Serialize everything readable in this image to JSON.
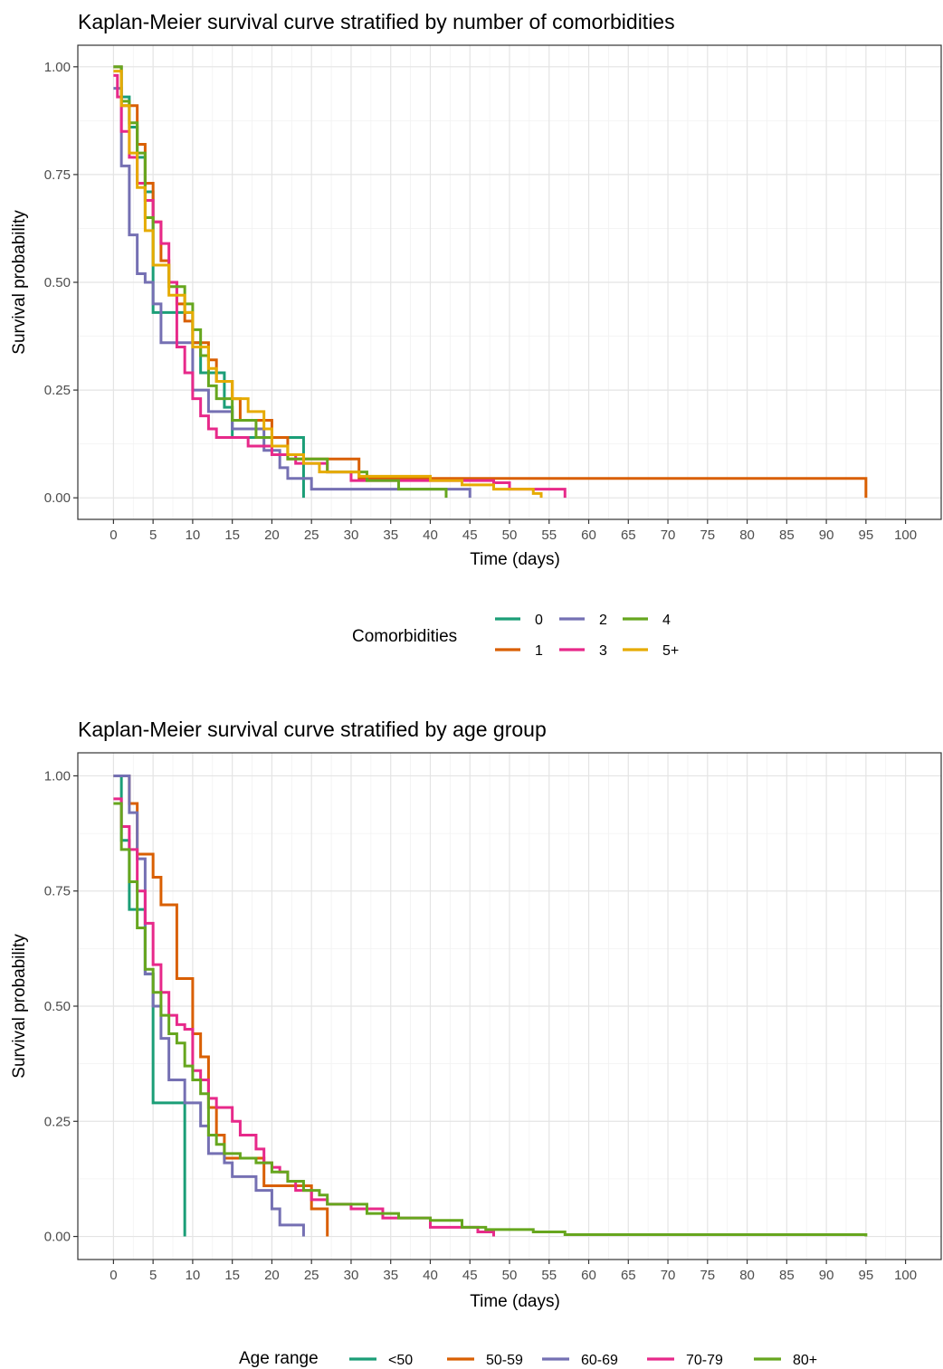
{
  "chart_data": [
    {
      "type": "line",
      "title": "Kaplan-Meier survival curve stratified by number of comorbidities",
      "xlabel": "Time (days)",
      "ylabel": "Survival probability",
      "xlim": [
        -4.5,
        104.5
      ],
      "ylim": [
        -0.05,
        1.05
      ],
      "x_ticks": [
        0,
        5,
        10,
        15,
        20,
        25,
        30,
        35,
        40,
        45,
        50,
        55,
        60,
        65,
        70,
        75,
        80,
        85,
        90,
        95,
        100
      ],
      "y_ticks": [
        0,
        0.25,
        0.5,
        0.75,
        1
      ],
      "y_tick_labels": [
        "0.00",
        "0.25",
        "0.50",
        "0.75",
        "1.00"
      ],
      "grid": true,
      "legend": {
        "title": "Comorbidities",
        "placement": "bottom",
        "order": [
          "0",
          "2",
          "4",
          "1",
          "3",
          "5+"
        ],
        "columns": 3
      },
      "series": [
        {
          "name": "0",
          "color": "#1b9e77",
          "steps": [
            [
              0,
              1.0
            ],
            [
              1,
              0.93
            ],
            [
              2,
              0.86
            ],
            [
              3,
              0.79
            ],
            [
              4,
              0.71
            ],
            [
              5,
              0.43
            ],
            [
              10,
              0.36
            ],
            [
              11,
              0.29
            ],
            [
              14,
              0.21
            ],
            [
              15,
              0.14
            ],
            [
              24,
              0.0
            ]
          ]
        },
        {
          "name": "1",
          "color": "#d95f02",
          "steps": [
            [
              0,
              1.0
            ],
            [
              1,
              0.91
            ],
            [
              3,
              0.82
            ],
            [
              4,
              0.73
            ],
            [
              5,
              0.64
            ],
            [
              6,
              0.55
            ],
            [
              7,
              0.5
            ],
            [
              8,
              0.45
            ],
            [
              9,
              0.41
            ],
            [
              10,
              0.36
            ],
            [
              12,
              0.32
            ],
            [
              13,
              0.27
            ],
            [
              15,
              0.23
            ],
            [
              16,
              0.18
            ],
            [
              20,
              0.14
            ],
            [
              22,
              0.09
            ],
            [
              31,
              0.045
            ],
            [
              95,
              0.0
            ]
          ]
        },
        {
          "name": "2",
          "color": "#7570b3",
          "steps": [
            [
              0,
              0.95
            ],
            [
              1,
              0.77
            ],
            [
              2,
              0.61
            ],
            [
              3,
              0.52
            ],
            [
              4,
              0.5
            ],
            [
              5,
              0.45
            ],
            [
              6,
              0.36
            ],
            [
              7,
              0.36
            ],
            [
              10,
              0.25
            ],
            [
              12,
              0.2
            ],
            [
              15,
              0.16
            ],
            [
              19,
              0.11
            ],
            [
              21,
              0.07
            ],
            [
              22,
              0.045
            ],
            [
              25,
              0.02
            ],
            [
              45,
              0.0
            ]
          ]
        },
        {
          "name": "3",
          "color": "#e7298a",
          "steps": [
            [
              0,
              0.98
            ],
            [
              0.5,
              0.93
            ],
            [
              1,
              0.85
            ],
            [
              2,
              0.79
            ],
            [
              3,
              0.73
            ],
            [
              4,
              0.69
            ],
            [
              5,
              0.64
            ],
            [
              6,
              0.59
            ],
            [
              7,
              0.5
            ],
            [
              8,
              0.35
            ],
            [
              9,
              0.29
            ],
            [
              10,
              0.23
            ],
            [
              11,
              0.19
            ],
            [
              12,
              0.16
            ],
            [
              13,
              0.14
            ],
            [
              17,
              0.12
            ],
            [
              20,
              0.1
            ],
            [
              23,
              0.08
            ],
            [
              27,
              0.06
            ],
            [
              30,
              0.04
            ],
            [
              48,
              0.035
            ],
            [
              50,
              0.02
            ],
            [
              57,
              0.0
            ]
          ]
        },
        {
          "name": "4",
          "color": "#66a61e",
          "steps": [
            [
              0,
              1.0
            ],
            [
              1,
              0.92
            ],
            [
              2,
              0.87
            ],
            [
              3,
              0.8
            ],
            [
              4,
              0.65
            ],
            [
              5,
              0.54
            ],
            [
              7,
              0.49
            ],
            [
              9,
              0.45
            ],
            [
              10,
              0.39
            ],
            [
              11,
              0.33
            ],
            [
              12,
              0.26
            ],
            [
              13,
              0.23
            ],
            [
              15,
              0.18
            ],
            [
              18,
              0.14
            ],
            [
              20,
              0.12
            ],
            [
              22,
              0.09
            ],
            [
              27,
              0.06
            ],
            [
              32,
              0.04
            ],
            [
              36,
              0.02
            ],
            [
              42,
              0.0
            ]
          ]
        },
        {
          "name": "5+",
          "color": "#e6ab02",
          "steps": [
            [
              0,
              0.99
            ],
            [
              1,
              0.91
            ],
            [
              2,
              0.8
            ],
            [
              3,
              0.72
            ],
            [
              4,
              0.62
            ],
            [
              5,
              0.54
            ],
            [
              7,
              0.47
            ],
            [
              9,
              0.43
            ],
            [
              10,
              0.35
            ],
            [
              12,
              0.3
            ],
            [
              13,
              0.27
            ],
            [
              15,
              0.23
            ],
            [
              17,
              0.2
            ],
            [
              19,
              0.16
            ],
            [
              20,
              0.12
            ],
            [
              22,
              0.1
            ],
            [
              24,
              0.08
            ],
            [
              26,
              0.06
            ],
            [
              31,
              0.05
            ],
            [
              40,
              0.04
            ],
            [
              44,
              0.03
            ],
            [
              48,
              0.02
            ],
            [
              53,
              0.01
            ],
            [
              54,
              0.0
            ]
          ]
        }
      ]
    },
    {
      "type": "line",
      "title": "Kaplan-Meier survival curve stratified by age group",
      "xlabel": "Time (days)",
      "ylabel": "Survival probability",
      "xlim": [
        -4.5,
        104.5
      ],
      "ylim": [
        -0.05,
        1.05
      ],
      "x_ticks": [
        0,
        5,
        10,
        15,
        20,
        25,
        30,
        35,
        40,
        45,
        50,
        55,
        60,
        65,
        70,
        75,
        80,
        85,
        90,
        95,
        100
      ],
      "y_ticks": [
        0,
        0.25,
        0.5,
        0.75,
        1
      ],
      "y_tick_labels": [
        "0.00",
        "0.25",
        "0.50",
        "0.75",
        "1.00"
      ],
      "grid": true,
      "legend": {
        "title": "Age range",
        "placement": "bottom",
        "order": [
          "<50",
          "50-59",
          "60-69",
          "70-79",
          "80+"
        ],
        "columns": 5
      },
      "series": [
        {
          "name": "<50",
          "color": "#1b9e77",
          "steps": [
            [
              0,
              1.0
            ],
            [
              1,
              0.86
            ],
            [
              2,
              0.71
            ],
            [
              4,
              0.57
            ],
            [
              5,
              0.29
            ],
            [
              9,
              0.0
            ]
          ]
        },
        {
          "name": "50-59",
          "color": "#d95f02",
          "steps": [
            [
              0,
              1.0
            ],
            [
              2,
              0.94
            ],
            [
              3,
              0.83
            ],
            [
              5,
              0.78
            ],
            [
              6,
              0.72
            ],
            [
              8,
              0.56
            ],
            [
              10,
              0.44
            ],
            [
              11,
              0.39
            ],
            [
              12,
              0.28
            ],
            [
              13,
              0.22
            ],
            [
              14,
              0.17
            ],
            [
              17,
              0.17
            ],
            [
              19,
              0.11
            ],
            [
              25,
              0.06
            ],
            [
              27,
              0.0
            ]
          ]
        },
        {
          "name": "60-69",
          "color": "#7570b3",
          "steps": [
            [
              0,
              1.0
            ],
            [
              2,
              0.92
            ],
            [
              3,
              0.82
            ],
            [
              4,
              0.57
            ],
            [
              5,
              0.5
            ],
            [
              6,
              0.43
            ],
            [
              7,
              0.34
            ],
            [
              9,
              0.29
            ],
            [
              11,
              0.24
            ],
            [
              12,
              0.18
            ],
            [
              14,
              0.16
            ],
            [
              15,
              0.13
            ],
            [
              18,
              0.1
            ],
            [
              20,
              0.06
            ],
            [
              21,
              0.025
            ],
            [
              24,
              0.0
            ]
          ]
        },
        {
          "name": "70-79",
          "color": "#e7298a",
          "steps": [
            [
              0,
              0.95
            ],
            [
              1,
              0.89
            ],
            [
              2,
              0.84
            ],
            [
              3,
              0.75
            ],
            [
              4,
              0.68
            ],
            [
              5,
              0.59
            ],
            [
              6,
              0.53
            ],
            [
              7,
              0.48
            ],
            [
              8,
              0.46
            ],
            [
              9,
              0.45
            ],
            [
              10,
              0.36
            ],
            [
              11,
              0.34
            ],
            [
              12,
              0.3
            ],
            [
              13,
              0.28
            ],
            [
              15,
              0.25
            ],
            [
              16,
              0.22
            ],
            [
              18,
              0.19
            ],
            [
              19,
              0.16
            ],
            [
              20,
              0.15
            ],
            [
              21,
              0.14
            ],
            [
              22,
              0.12
            ],
            [
              23,
              0.1
            ],
            [
              25,
              0.08
            ],
            [
              27,
              0.07
            ],
            [
              30,
              0.06
            ],
            [
              34,
              0.04
            ],
            [
              40,
              0.02
            ],
            [
              46,
              0.01
            ],
            [
              48,
              0.0
            ]
          ]
        },
        {
          "name": "80+",
          "color": "#66a61e",
          "steps": [
            [
              0,
              0.94
            ],
            [
              1,
              0.84
            ],
            [
              2,
              0.77
            ],
            [
              3,
              0.67
            ],
            [
              4,
              0.58
            ],
            [
              5,
              0.53
            ],
            [
              6,
              0.48
            ],
            [
              7,
              0.44
            ],
            [
              8,
              0.42
            ],
            [
              9,
              0.37
            ],
            [
              10,
              0.34
            ],
            [
              11,
              0.31
            ],
            [
              12,
              0.22
            ],
            [
              13,
              0.2
            ],
            [
              14,
              0.18
            ],
            [
              16,
              0.17
            ],
            [
              18,
              0.16
            ],
            [
              20,
              0.14
            ],
            [
              22,
              0.12
            ],
            [
              24,
              0.1
            ],
            [
              26,
              0.09
            ],
            [
              27,
              0.07
            ],
            [
              32,
              0.05
            ],
            [
              36,
              0.04
            ],
            [
              40,
              0.035
            ],
            [
              44,
              0.02
            ],
            [
              47,
              0.015
            ],
            [
              53,
              0.01
            ],
            [
              57,
              0.004
            ],
            [
              95,
              0.0
            ]
          ]
        }
      ]
    }
  ]
}
